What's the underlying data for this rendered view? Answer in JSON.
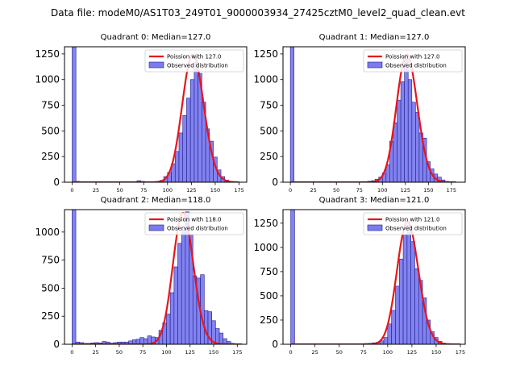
{
  "title": "Data file: modeM0/AS1T03_249T01_9000003934_27425cztM0_level2_quad_clean.evt",
  "colors": {
    "bar_fill": "#7b7bef",
    "bar_edge": "#1f1f8a",
    "curve": "#e8141c"
  },
  "chart_data": [
    {
      "type": "bar",
      "title": "Quadrant 0: Median=127.0",
      "xlim": [
        -8,
        183
      ],
      "ylim": [
        0,
        1320
      ],
      "xticks": [
        0,
        25,
        50,
        75,
        100,
        125,
        150,
        175
      ],
      "yticks": [
        0,
        250,
        500,
        750,
        1000,
        1250
      ],
      "series": [
        {
          "name": "Observed distribution",
          "kind": "histogram",
          "bin_width": 4,
          "bins": [
            [
              0,
              1320
            ],
            [
              4,
              8
            ],
            [
              8,
              3
            ],
            [
              12,
              2
            ],
            [
              16,
              1
            ],
            [
              20,
              1
            ],
            [
              24,
              1
            ],
            [
              28,
              1
            ],
            [
              32,
              1
            ],
            [
              36,
              1
            ],
            [
              40,
              1
            ],
            [
              44,
              1
            ],
            [
              48,
              1
            ],
            [
              52,
              1
            ],
            [
              56,
              1
            ],
            [
              60,
              1
            ],
            [
              64,
              2
            ],
            [
              68,
              15
            ],
            [
              72,
              8
            ],
            [
              76,
              3
            ],
            [
              80,
              3
            ],
            [
              84,
              5
            ],
            [
              88,
              8
            ],
            [
              92,
              18
            ],
            [
              96,
              55
            ],
            [
              100,
              95
            ],
            [
              104,
              180
            ],
            [
              108,
              300
            ],
            [
              112,
              480
            ],
            [
              116,
              650
            ],
            [
              120,
              820
            ],
            [
              124,
              1000
            ],
            [
              128,
              1170
            ],
            [
              132,
              1060
            ],
            [
              136,
              780
            ],
            [
              140,
              520
            ],
            [
              144,
              400
            ],
            [
              148,
              245
            ],
            [
              152,
              120
            ],
            [
              156,
              55
            ],
            [
              160,
              20
            ],
            [
              164,
              8
            ],
            [
              168,
              3
            ],
            [
              172,
              1
            ]
          ]
        },
        {
          "name": "Poission with 127.0",
          "kind": "poisson",
          "mu": 127.0,
          "scale": 1245,
          "x_range": [
            0,
            175
          ]
        }
      ],
      "legend": {
        "position": "top-right",
        "entries": [
          "Poission with 127.0",
          "Observed distribution"
        ]
      }
    },
    {
      "type": "bar",
      "title": "Quadrant 1: Median=127.0",
      "xlim": [
        -8,
        190
      ],
      "ylim": [
        0,
        1320
      ],
      "xticks": [
        0,
        25,
        50,
        75,
        100,
        125,
        150,
        175
      ],
      "yticks": [
        0,
        250,
        500,
        750,
        1000,
        1250
      ],
      "series": [
        {
          "name": "Observed distribution",
          "kind": "histogram",
          "bin_width": 4,
          "bins": [
            [
              0,
              1320
            ],
            [
              4,
              5
            ],
            [
              8,
              2
            ],
            [
              12,
              1
            ],
            [
              16,
              1
            ],
            [
              20,
              1
            ],
            [
              24,
              1
            ],
            [
              28,
              1
            ],
            [
              32,
              1
            ],
            [
              36,
              1
            ],
            [
              40,
              1
            ],
            [
              44,
              1
            ],
            [
              48,
              1
            ],
            [
              52,
              1
            ],
            [
              56,
              1
            ],
            [
              60,
              1
            ],
            [
              64,
              2
            ],
            [
              68,
              3
            ],
            [
              72,
              4
            ],
            [
              76,
              6
            ],
            [
              80,
              6
            ],
            [
              84,
              10
            ],
            [
              88,
              15
            ],
            [
              92,
              30
            ],
            [
              96,
              50
            ],
            [
              100,
              90
            ],
            [
              104,
              170
            ],
            [
              108,
              400
            ],
            [
              112,
              580
            ],
            [
              116,
              800
            ],
            [
              120,
              980
            ],
            [
              124,
              1200
            ],
            [
              128,
              1000
            ],
            [
              132,
              780
            ],
            [
              136,
              680
            ],
            [
              140,
              480
            ],
            [
              144,
              430
            ],
            [
              148,
              200
            ],
            [
              152,
              130
            ],
            [
              156,
              80
            ],
            [
              160,
              50
            ],
            [
              164,
              22
            ],
            [
              168,
              8
            ],
            [
              172,
              3
            ],
            [
              176,
              2
            ]
          ]
        },
        {
          "name": "Poission with 127.0",
          "kind": "poisson",
          "mu": 127.0,
          "scale": 1245,
          "x_range": [
            0,
            180
          ]
        }
      ],
      "legend": {
        "position": "top-right",
        "entries": [
          "Poission with 127.0",
          "Observed distribution"
        ]
      }
    },
    {
      "type": "bar",
      "title": "Quadrant 2: Median=118.0",
      "xlim": [
        -8,
        185
      ],
      "ylim": [
        0,
        1200
      ],
      "xticks": [
        0,
        25,
        50,
        75,
        100,
        125,
        150,
        175
      ],
      "yticks": [
        0,
        250,
        500,
        750,
        1000
      ],
      "series": [
        {
          "name": "Observed distribution",
          "kind": "histogram",
          "bin_width": 4,
          "bins": [
            [
              0,
              1200
            ],
            [
              4,
              20
            ],
            [
              8,
              15
            ],
            [
              12,
              8
            ],
            [
              16,
              8
            ],
            [
              20,
              12
            ],
            [
              24,
              15
            ],
            [
              28,
              12
            ],
            [
              32,
              25
            ],
            [
              36,
              20
            ],
            [
              40,
              10
            ],
            [
              44,
              15
            ],
            [
              48,
              20
            ],
            [
              52,
              20
            ],
            [
              56,
              20
            ],
            [
              60,
              30
            ],
            [
              64,
              40
            ],
            [
              68,
              45
            ],
            [
              72,
              60
            ],
            [
              76,
              50
            ],
            [
              80,
              75
            ],
            [
              84,
              65
            ],
            [
              88,
              60
            ],
            [
              92,
              125
            ],
            [
              96,
              190
            ],
            [
              100,
              270
            ],
            [
              104,
              460
            ],
            [
              108,
              690
            ],
            [
              112,
              900
            ],
            [
              116,
              1020
            ],
            [
              120,
              1180
            ],
            [
              124,
              980
            ],
            [
              128,
              610
            ],
            [
              132,
              590
            ],
            [
              136,
              620
            ],
            [
              140,
              300
            ],
            [
              144,
              290
            ],
            [
              148,
              210
            ],
            [
              152,
              140
            ],
            [
              156,
              100
            ],
            [
              160,
              50
            ],
            [
              164,
              25
            ],
            [
              168,
              8
            ],
            [
              172,
              3
            ]
          ]
        },
        {
          "name": "Poission with 118.0",
          "kind": "poisson",
          "mu": 118.0,
          "scale": 1170,
          "x_range": [
            0,
            180
          ]
        }
      ],
      "legend": {
        "position": "top-right",
        "entries": [
          "Poission with 118.0",
          "Observed distribution"
        ]
      }
    },
    {
      "type": "bar",
      "title": "Quadrant 3: Median=121.0",
      "xlim": [
        -8,
        180
      ],
      "ylim": [
        0,
        1390
      ],
      "xticks": [
        0,
        25,
        50,
        75,
        100,
        125,
        150,
        175
      ],
      "yticks": [
        0,
        250,
        500,
        750,
        1000,
        1250
      ],
      "series": [
        {
          "name": "Observed distribution",
          "kind": "histogram",
          "bin_width": 4,
          "bins": [
            [
              0,
              1390
            ],
            [
              4,
              5
            ],
            [
              8,
              2
            ],
            [
              12,
              1
            ],
            [
              16,
              1
            ],
            [
              20,
              1
            ],
            [
              24,
              1
            ],
            [
              28,
              1
            ],
            [
              32,
              1
            ],
            [
              36,
              1
            ],
            [
              40,
              1
            ],
            [
              44,
              1
            ],
            [
              48,
              1
            ],
            [
              52,
              1
            ],
            [
              56,
              1
            ],
            [
              60,
              1
            ],
            [
              64,
              2
            ],
            [
              68,
              3
            ],
            [
              72,
              5
            ],
            [
              76,
              8
            ],
            [
              80,
              10
            ],
            [
              84,
              15
            ],
            [
              88,
              20
            ],
            [
              92,
              35
            ],
            [
              96,
              70
            ],
            [
              100,
              210
            ],
            [
              104,
              350
            ],
            [
              108,
              600
            ],
            [
              112,
              880
            ],
            [
              116,
              1130
            ],
            [
              120,
              1230
            ],
            [
              124,
              1060
            ],
            [
              128,
              780
            ],
            [
              132,
              660
            ],
            [
              136,
              480
            ],
            [
              140,
              250
            ],
            [
              144,
              130
            ],
            [
              148,
              70
            ],
            [
              152,
              30
            ],
            [
              156,
              12
            ],
            [
              160,
              5
            ],
            [
              164,
              2
            ]
          ]
        },
        {
          "name": "Poission with 121.0",
          "kind": "poisson",
          "mu": 121.0,
          "scale": 1265,
          "x_range": [
            0,
            175
          ]
        }
      ],
      "legend": {
        "position": "top-right",
        "entries": [
          "Poission with 121.0",
          "Observed distribution"
        ]
      }
    }
  ]
}
